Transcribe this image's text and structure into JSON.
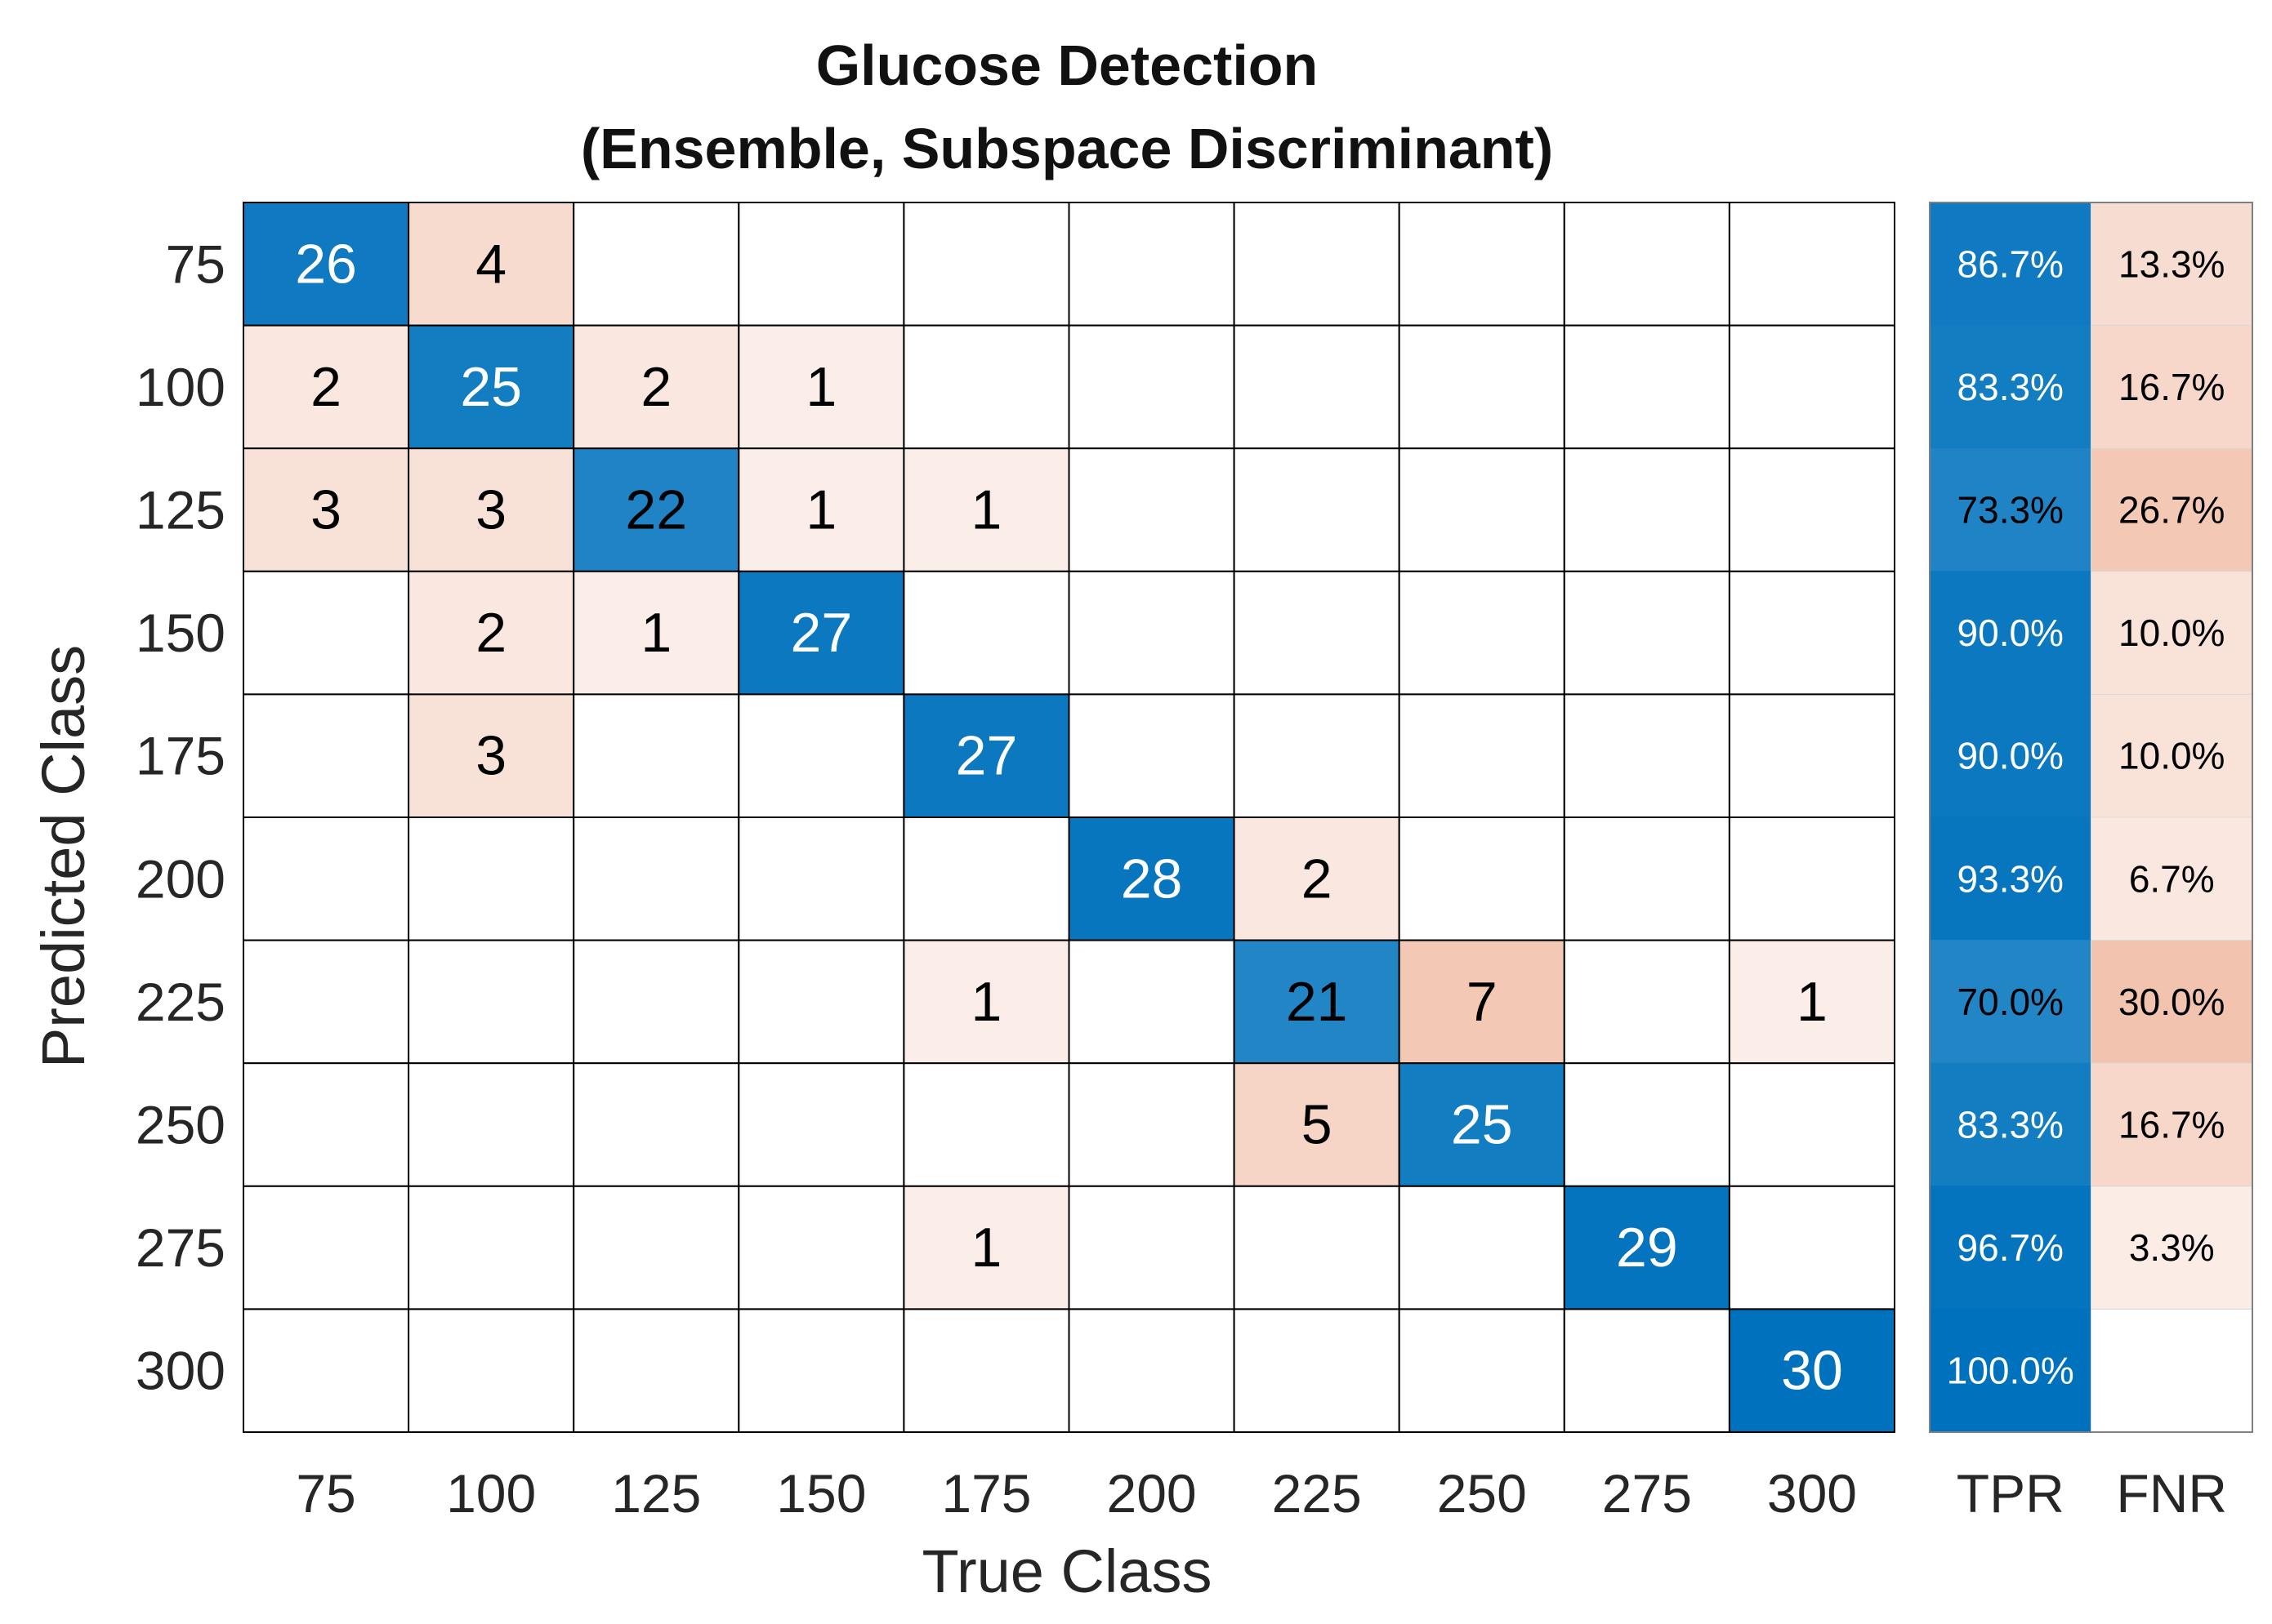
{
  "chart_data": {
    "type": "heatmap",
    "title": [
      "Glucose Detection",
      "(Ensemble, Subspace Discriminant)"
    ],
    "xlabel": "True Class",
    "ylabel": "Predicted Class",
    "x_categories": [
      "75",
      "100",
      "125",
      "150",
      "175",
      "200",
      "225",
      "250",
      "275",
      "300"
    ],
    "y_categories": [
      "75",
      "100",
      "125",
      "150",
      "175",
      "200",
      "225",
      "250",
      "275",
      "300"
    ],
    "matrix": [
      [
        26,
        4,
        0,
        0,
        0,
        0,
        0,
        0,
        0,
        0
      ],
      [
        2,
        25,
        2,
        1,
        0,
        0,
        0,
        0,
        0,
        0
      ],
      [
        3,
        3,
        22,
        1,
        1,
        0,
        0,
        0,
        0,
        0
      ],
      [
        0,
        2,
        1,
        27,
        0,
        0,
        0,
        0,
        0,
        0
      ],
      [
        0,
        3,
        0,
        0,
        27,
        0,
        0,
        0,
        0,
        0
      ],
      [
        0,
        0,
        0,
        0,
        0,
        28,
        2,
        0,
        0,
        0
      ],
      [
        0,
        0,
        0,
        0,
        1,
        0,
        21,
        7,
        0,
        1
      ],
      [
        0,
        0,
        0,
        0,
        0,
        0,
        5,
        25,
        0,
        0
      ],
      [
        0,
        0,
        0,
        0,
        1,
        0,
        0,
        0,
        29,
        0
      ],
      [
        0,
        0,
        0,
        0,
        0,
        0,
        0,
        0,
        0,
        30
      ]
    ],
    "summary_columns": [
      "TPR",
      "FNR"
    ],
    "tpr": [
      "86.7%",
      "83.3%",
      "73.3%",
      "90.0%",
      "90.0%",
      "93.3%",
      "70.0%",
      "83.3%",
      "96.7%",
      "100.0%"
    ],
    "fnr": [
      "13.3%",
      "16.7%",
      "26.7%",
      "10.0%",
      "10.0%",
      "6.7%",
      "30.0%",
      "16.7%",
      "3.3%",
      ""
    ],
    "colors": {
      "correct": "#0072BD",
      "incorrect": "#D95319",
      "grid": "#000000",
      "dark_text": "#000000",
      "light_text": "#ffffff"
    }
  }
}
